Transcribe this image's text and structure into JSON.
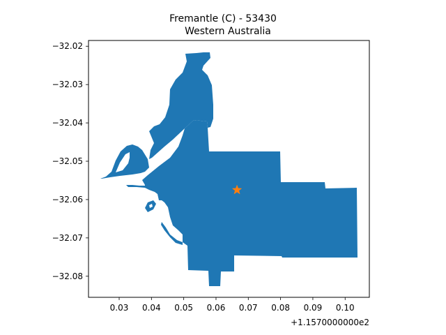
{
  "chart_data": {
    "type": "map",
    "title": "Fremantle (C) - 53430",
    "subtitle": "Western Australia",
    "fill_color": "#1f77b4",
    "marker": {
      "shape": "star",
      "color": "#ff7f0e",
      "x": 0.0665,
      "y": -32.0575
    },
    "x_offset_label": "+1.1570000000e2",
    "xlim": [
      0.0205,
      0.1075
    ],
    "ylim": [
      -32.0855,
      -32.0185
    ],
    "x_ticks": [
      {
        "value": 0.03,
        "label": "0.03"
      },
      {
        "value": 0.04,
        "label": "0.04"
      },
      {
        "value": 0.05,
        "label": "0.05"
      },
      {
        "value": 0.06,
        "label": "0.06"
      },
      {
        "value": 0.07,
        "label": "0.07"
      },
      {
        "value": 0.08,
        "label": "0.08"
      },
      {
        "value": 0.09,
        "label": "0.09"
      },
      {
        "value": 0.1,
        "label": "0.10"
      }
    ],
    "y_ticks": [
      {
        "value": -32.02,
        "label": "−32.02"
      },
      {
        "value": -32.03,
        "label": "−32.03"
      },
      {
        "value": -32.04,
        "label": "−32.04"
      },
      {
        "value": -32.05,
        "label": "−32.05"
      },
      {
        "value": -32.06,
        "label": "−32.06"
      },
      {
        "value": -32.07,
        "label": "−32.07"
      },
      {
        "value": -32.08,
        "label": "−32.08"
      }
    ]
  }
}
